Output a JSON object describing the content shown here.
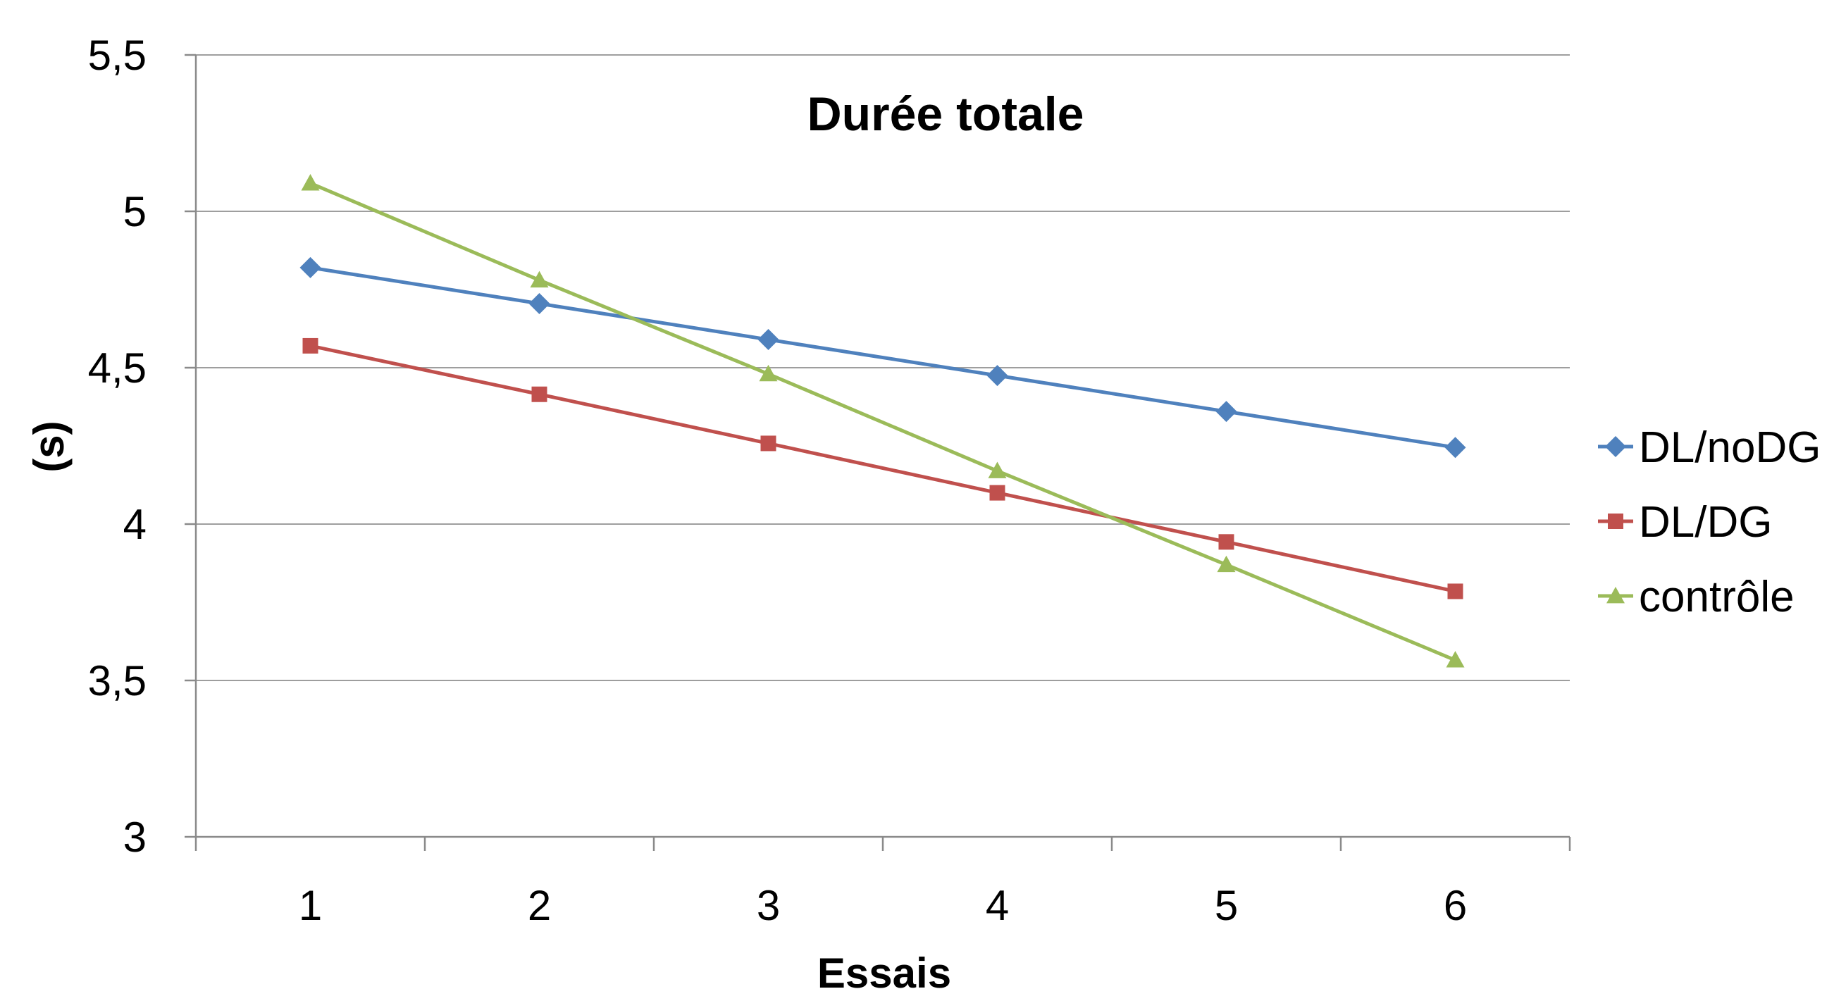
{
  "chart_data": {
    "type": "line",
    "title": "Durée totale",
    "xlabel": "Essais",
    "ylabel": "(s)",
    "categories": [
      "1",
      "2",
      "3",
      "4",
      "5",
      "6"
    ],
    "ylim": [
      3,
      5.5
    ],
    "yticks": [
      "3",
      "3,5",
      "4",
      "4,5",
      "5",
      "5,5"
    ],
    "grid": "horizontal",
    "legend_position": "right",
    "series": [
      {
        "name": "DL/noDG",
        "color": "#4f81bd",
        "marker": "diamond",
        "values": [
          4.82,
          4.705,
          4.59,
          4.475,
          4.36,
          4.245
        ]
      },
      {
        "name": "DL/DG",
        "color": "#c0504d",
        "marker": "square",
        "values": [
          4.57,
          4.415,
          4.258,
          4.1,
          3.943,
          3.785
        ]
      },
      {
        "name": "contrôle",
        "color": "#9bbb59",
        "marker": "triangle",
        "values": [
          5.09,
          4.78,
          4.48,
          4.17,
          3.87,
          3.565
        ]
      }
    ]
  }
}
